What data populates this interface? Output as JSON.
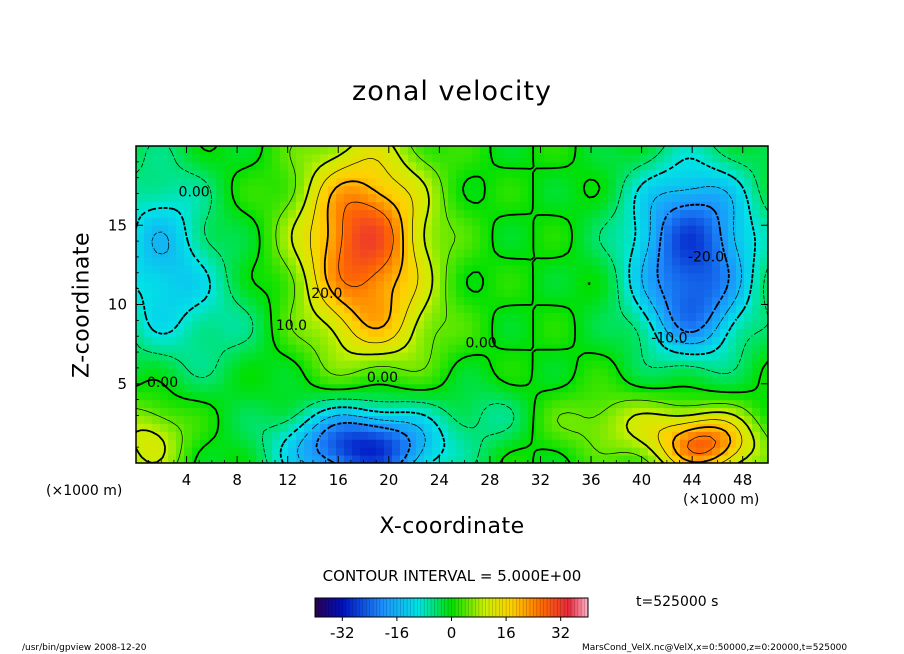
{
  "chart_data": {
    "type": "heatmap",
    "title": "zonal velocity",
    "xlabel": "X-coordinate",
    "ylabel": "Z-coordinate",
    "x_unit": "(×1000 m)",
    "xlim": [
      0,
      50
    ],
    "ylim": [
      0,
      20
    ],
    "x_ticks": [
      4,
      8,
      12,
      16,
      20,
      24,
      28,
      32,
      36,
      40,
      44,
      48
    ],
    "y_ticks": [
      5,
      10,
      15
    ],
    "contour_interval_text": "CONTOUR INTERVAL = 5.000E+00",
    "contour_labels": [
      {
        "text": "0.00",
        "x": 4.6,
        "z": 16.8
      },
      {
        "text": "20.0",
        "x": 15.1,
        "z": 10.4
      },
      {
        "text": "10.0",
        "x": 12.3,
        "z": 8.4
      },
      {
        "text": "0.00",
        "x": 27.3,
        "z": 7.3
      },
      {
        "text": "0.00",
        "x": 19.5,
        "z": 5.1
      },
      {
        "text": "0.00",
        "x": 2.1,
        "z": 4.8
      },
      {
        "text": "-20.0",
        "x": 45.1,
        "z": 12.7
      },
      {
        "text": "-10.0",
        "x": 42.2,
        "z": 7.6
      }
    ],
    "colorbar": {
      "range": [
        -40,
        40
      ],
      "tick_labels": [
        "-32",
        "-16",
        "0",
        "16",
        "32"
      ],
      "tick_values": [
        -32,
        -16,
        0,
        16,
        32
      ]
    },
    "grid": false
  },
  "time_label": "t=525000 s",
  "footer_left": "/usr/bin/gpview   2008-12-20",
  "footer_right": "MarsCond_VelX.nc@VelX,x=0:50000,z=0:20000,t=525000"
}
